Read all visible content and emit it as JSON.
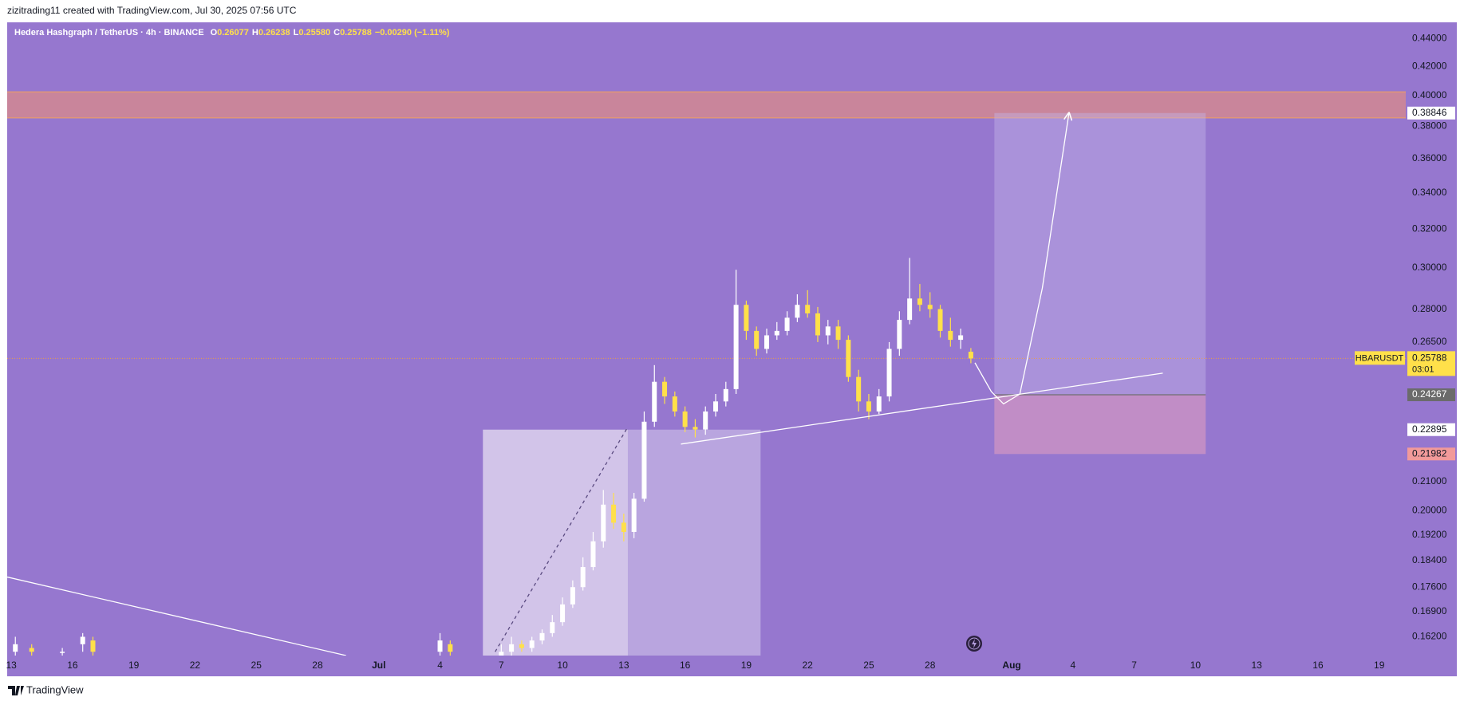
{
  "header": {
    "credit": "zizitrading11 created with TradingView.com, Jul 30, 2025 07:56 UTC",
    "footer": "TradingView"
  },
  "chart_data": {
    "type": "candlestick",
    "title": "Hedera Hashgraph / TetherUS · 4h · BINANCE",
    "ohlc_legend": [
      {
        "label": "O",
        "value": "0.26077"
      },
      {
        "label": "H",
        "value": "0.26238"
      },
      {
        "label": "L",
        "value": "0.25580"
      },
      {
        "label": "C",
        "value": "0.25788"
      },
      {
        "label": "",
        "value": "−0.00290 (−1.11%)"
      }
    ],
    "log_scale": true,
    "background": "#9677cf",
    "up_color": "#ffffff",
    "down_color": "#ffe04a",
    "xlim": [
      12.8,
      81.3
    ],
    "xticks": [
      {
        "value": 13,
        "label": "13"
      },
      {
        "value": 16,
        "label": "16"
      },
      {
        "value": 19,
        "label": "19"
      },
      {
        "value": 22,
        "label": "22"
      },
      {
        "value": 25,
        "label": "25"
      },
      {
        "value": 28,
        "label": "28"
      },
      {
        "value": 31,
        "label": "Jul"
      },
      {
        "value": 34,
        "label": "4"
      },
      {
        "value": 37,
        "label": "7"
      },
      {
        "value": 40,
        "label": "10"
      },
      {
        "value": 43,
        "label": "13"
      },
      {
        "value": 46,
        "label": "16"
      },
      {
        "value": 49,
        "label": "19"
      },
      {
        "value": 52,
        "label": "22"
      },
      {
        "value": 55,
        "label": "25"
      },
      {
        "value": 58,
        "label": "28"
      },
      {
        "value": 62,
        "label": "Aug"
      },
      {
        "value": 65,
        "label": "4"
      },
      {
        "value": 68,
        "label": "7"
      },
      {
        "value": 71,
        "label": "10"
      },
      {
        "value": 74,
        "label": "13"
      },
      {
        "value": 77,
        "label": "16"
      },
      {
        "value": 80,
        "label": "19"
      }
    ],
    "ylim": [
      0.157,
      0.452
    ],
    "yticks": [
      {
        "value": 0.44,
        "label": "0.44000"
      },
      {
        "value": 0.42,
        "label": "0.42000"
      },
      {
        "value": 0.4,
        "label": "0.40000"
      },
      {
        "value": 0.38,
        "label": "0.38000"
      },
      {
        "value": 0.36,
        "label": "0.36000"
      },
      {
        "value": 0.34,
        "label": "0.34000"
      },
      {
        "value": 0.32,
        "label": "0.32000"
      },
      {
        "value": 0.3,
        "label": "0.30000"
      },
      {
        "value": 0.28,
        "label": "0.28000"
      },
      {
        "value": 0.265,
        "label": "0.26500"
      },
      {
        "value": 0.21,
        "label": "0.21000"
      },
      {
        "value": 0.2,
        "label": "0.20000"
      },
      {
        "value": 0.192,
        "label": "0.19200"
      },
      {
        "value": 0.184,
        "label": "0.18400"
      },
      {
        "value": 0.176,
        "label": "0.17600"
      },
      {
        "value": 0.169,
        "label": "0.16900"
      },
      {
        "value": 0.162,
        "label": "0.16200"
      }
    ],
    "candles": {
      "x": [
        13.2,
        14,
        15.5,
        16.5,
        17,
        34,
        34.5,
        37,
        37.5,
        38,
        38.5,
        39,
        39.5,
        40,
        40.5,
        41,
        41.5,
        42,
        42.5,
        43,
        43.5,
        44,
        44.5,
        45,
        45.5,
        46,
        46.5,
        47,
        47.5,
        48,
        48.5,
        49,
        49.5,
        50,
        50.5,
        51,
        51.5,
        52,
        52.5,
        53,
        53.5,
        54,
        54.5,
        55,
        55.5,
        56,
        56.5,
        57,
        57.5,
        58,
        58.5,
        59,
        59.5,
        60
      ],
      "open": [
        0.158,
        0.159,
        0.158,
        0.16,
        0.161,
        0.158,
        0.16,
        0.157,
        0.158,
        0.16,
        0.159,
        0.161,
        0.163,
        0.166,
        0.171,
        0.176,
        0.182,
        0.19,
        0.202,
        0.196,
        0.193,
        0.204,
        0.232,
        0.248,
        0.242,
        0.236,
        0.23,
        0.229,
        0.236,
        0.24,
        0.245,
        0.282,
        0.27,
        0.262,
        0.268,
        0.27,
        0.276,
        0.282,
        0.278,
        0.268,
        0.272,
        0.266,
        0.25,
        0.24,
        0.236,
        0.242,
        0.262,
        0.275,
        0.285,
        0.282,
        0.28,
        0.27,
        0.266,
        0.26077
      ],
      "high": [
        0.162,
        0.16,
        0.159,
        0.163,
        0.162,
        0.163,
        0.161,
        0.16,
        0.162,
        0.161,
        0.162,
        0.164,
        0.168,
        0.173,
        0.178,
        0.185,
        0.193,
        0.207,
        0.206,
        0.199,
        0.206,
        0.236,
        0.255,
        0.25,
        0.244,
        0.238,
        0.233,
        0.238,
        0.243,
        0.248,
        0.299,
        0.284,
        0.272,
        0.271,
        0.274,
        0.279,
        0.287,
        0.289,
        0.281,
        0.275,
        0.275,
        0.268,
        0.253,
        0.243,
        0.245,
        0.265,
        0.279,
        0.305,
        0.292,
        0.288,
        0.282,
        0.276,
        0.271,
        0.26238
      ],
      "low": [
        0.156,
        0.157,
        0.157,
        0.158,
        0.157,
        0.156,
        0.157,
        0.156,
        0.157,
        0.158,
        0.158,
        0.16,
        0.162,
        0.165,
        0.17,
        0.175,
        0.181,
        0.188,
        0.194,
        0.19,
        0.191,
        0.203,
        0.23,
        0.239,
        0.234,
        0.228,
        0.226,
        0.227,
        0.234,
        0.238,
        0.243,
        0.266,
        0.259,
        0.26,
        0.266,
        0.268,
        0.274,
        0.276,
        0.265,
        0.264,
        0.262,
        0.248,
        0.236,
        0.233,
        0.235,
        0.24,
        0.259,
        0.273,
        0.279,
        0.276,
        0.267,
        0.263,
        0.262,
        0.2558
      ],
      "close": [
        0.16,
        0.158,
        0.158,
        0.162,
        0.158,
        0.161,
        0.158,
        0.158,
        0.16,
        0.159,
        0.161,
        0.163,
        0.166,
        0.171,
        0.176,
        0.182,
        0.19,
        0.202,
        0.196,
        0.193,
        0.204,
        0.232,
        0.248,
        0.242,
        0.236,
        0.23,
        0.229,
        0.236,
        0.24,
        0.245,
        0.282,
        0.27,
        0.262,
        0.268,
        0.27,
        0.276,
        0.282,
        0.278,
        0.268,
        0.272,
        0.266,
        0.25,
        0.24,
        0.236,
        0.242,
        0.262,
        0.275,
        0.285,
        0.282,
        0.28,
        0.27,
        0.266,
        0.268,
        0.25788
      ]
    },
    "resistance_zone": {
      "low": 0.3853,
      "high": 0.4025,
      "color": "#d98a8a"
    },
    "range_box": {
      "x": [
        36.1,
        43.2,
        49.7
      ],
      "low": 0.157,
      "high": 0.22895
    },
    "position": {
      "x": [
        61.15,
        71.5
      ],
      "entry": 0.24267,
      "target": 0.38846,
      "stop": 0.21982
    },
    "trendlines": [
      {
        "x": [
          45.8,
          69.4
        ],
        "y": [
          0.2235,
          0.2516
        ],
        "dashed": false
      },
      {
        "x": [
          12.8,
          29.4
        ],
        "y": [
          0.179,
          0.157
        ],
        "dashed": false
      },
      {
        "x": [
          36.7,
          43.2
        ],
        "y": [
          0.158,
          0.23
        ],
        "dashed": true
      }
    ],
    "projection": {
      "x": [
        60.2,
        61.0,
        61.6,
        62.4,
        63.5,
        64.8
      ],
      "y": [
        0.256,
        0.244,
        0.239,
        0.243,
        0.29,
        0.388
      ]
    },
    "last_price": {
      "value": 0.25788,
      "label": "0.25788",
      "countdown": "03:01",
      "symbol": "HBARUSDT"
    },
    "price_labels": [
      {
        "value": 0.38846,
        "label": "0.38846",
        "color": "#ffffff",
        "text_color": "#131722"
      },
      {
        "value": 0.24267,
        "label": "0.24267",
        "color": "#6b6b6b",
        "text_color": "#ffffff"
      },
      {
        "value": 0.22895,
        "label": "0.22895",
        "color": "#ffffff",
        "text_color": "#131722"
      },
      {
        "value": 0.21982,
        "label": "0.21982",
        "color": "#f29a9a",
        "text_color": "#131722"
      }
    ]
  }
}
